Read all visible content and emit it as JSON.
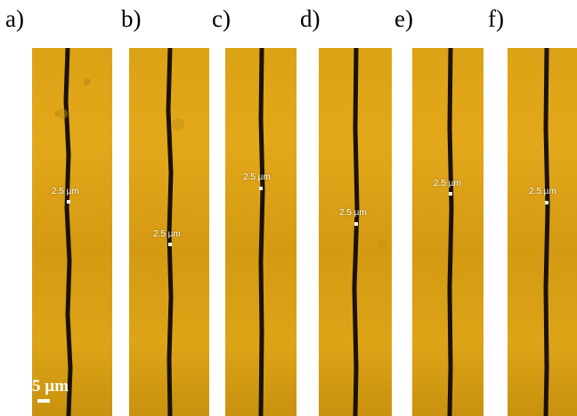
{
  "panels": [
    {
      "label": "a)",
      "annotation": "2.5 µm"
    },
    {
      "label": "b)",
      "annotation": "2.5 µm"
    },
    {
      "label": "c)",
      "annotation": "2.5 µm"
    },
    {
      "label": "d)",
      "annotation": "2.5 µm"
    },
    {
      "label": "e)",
      "annotation": "2.5 µm"
    },
    {
      "label": "f)",
      "annotation": "2.5 µm"
    }
  ],
  "scale_bar": {
    "label": "5 µm"
  },
  "colors": {
    "background": "#dca215",
    "line": "#1a1206",
    "annotation": "#ffffff"
  }
}
